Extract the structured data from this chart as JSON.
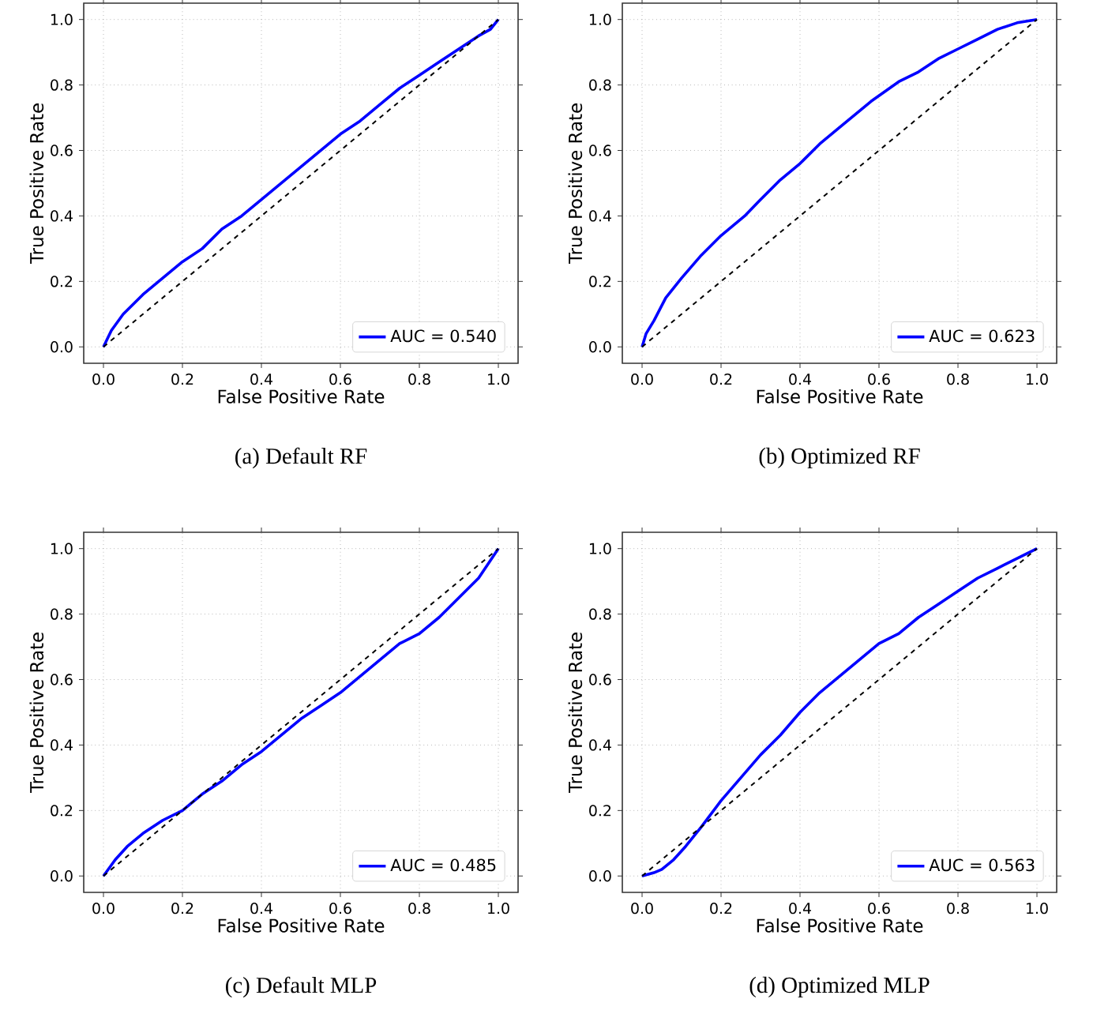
{
  "chart_data": [
    {
      "type": "line",
      "xlabel": "False Positive Rate",
      "ylabel": "True Positive Rate",
      "annotations": [
        "(a) Default RF"
      ],
      "xlim": [
        -0.05,
        1.05
      ],
      "ylim": [
        -0.05,
        1.05
      ],
      "xticks": [
        {
          "value": 0,
          "label": "0.0"
        },
        {
          "value": 0.2,
          "label": "0.2"
        },
        {
          "value": 0.4,
          "label": "0.4"
        },
        {
          "value": 0.6,
          "label": "0.6"
        },
        {
          "value": 0.8,
          "label": "0.8"
        },
        {
          "value": 1,
          "label": "1.0"
        }
      ],
      "yticks": [
        {
          "value": 0,
          "label": "0.0"
        },
        {
          "value": 0.2,
          "label": "0.2"
        },
        {
          "value": 0.4,
          "label": "0.4"
        },
        {
          "value": 0.6,
          "label": "0.6"
        },
        {
          "value": 0.8,
          "label": "0.8"
        },
        {
          "value": 1,
          "label": "1.0"
        }
      ],
      "grid": true,
      "legend": "bottom right",
      "series": [
        {
          "name": "AUC = 0.540",
          "color": "#0000ff",
          "line_style": "solid",
          "x": [
            0,
            0.02,
            0.05,
            0.1,
            0.15,
            0.2,
            0.25,
            0.3,
            0.35,
            0.4,
            0.45,
            0.5,
            0.55,
            0.6,
            0.65,
            0.7,
            0.75,
            0.8,
            0.85,
            0.9,
            0.95,
            0.98,
            1
          ],
          "values": [
            0,
            0.05,
            0.1,
            0.16,
            0.21,
            0.26,
            0.3,
            0.36,
            0.4,
            0.45,
            0.5,
            0.55,
            0.6,
            0.65,
            0.69,
            0.74,
            0.79,
            0.83,
            0.87,
            0.91,
            0.95,
            0.97,
            1
          ]
        },
        {
          "color": "#000000",
          "line_style": "dashed",
          "x": [
            0,
            1
          ],
          "values": [
            0,
            1
          ]
        }
      ]
    },
    {
      "type": "line",
      "xlabel": "False Positive Rate",
      "ylabel": "True Positive Rate",
      "annotations": [
        "(b) Optimized RF"
      ],
      "xlim": [
        -0.05,
        1.05
      ],
      "ylim": [
        -0.05,
        1.05
      ],
      "xticks": [
        {
          "value": 0,
          "label": "0.0"
        },
        {
          "value": 0.2,
          "label": "0.2"
        },
        {
          "value": 0.4,
          "label": "0.4"
        },
        {
          "value": 0.6,
          "label": "0.6"
        },
        {
          "value": 0.8,
          "label": "0.8"
        },
        {
          "value": 1,
          "label": "1.0"
        }
      ],
      "yticks": [
        {
          "value": 0,
          "label": "0.0"
        },
        {
          "value": 0.2,
          "label": "0.2"
        },
        {
          "value": 0.4,
          "label": "0.4"
        },
        {
          "value": 0.6,
          "label": "0.6"
        },
        {
          "value": 0.8,
          "label": "0.8"
        },
        {
          "value": 1,
          "label": "1.0"
        }
      ],
      "grid": true,
      "legend": "bottom right",
      "series": [
        {
          "name": "AUC = 0.623",
          "color": "#0000ff",
          "line_style": "solid",
          "x": [
            0,
            0.01,
            0.03,
            0.06,
            0.1,
            0.15,
            0.2,
            0.26,
            0.3,
            0.35,
            0.4,
            0.45,
            0.5,
            0.54,
            0.58,
            0.65,
            0.7,
            0.75,
            0.8,
            0.85,
            0.9,
            0.95,
            1
          ],
          "values": [
            0,
            0.04,
            0.08,
            0.15,
            0.21,
            0.28,
            0.34,
            0.4,
            0.45,
            0.51,
            0.56,
            0.62,
            0.67,
            0.71,
            0.75,
            0.81,
            0.84,
            0.88,
            0.91,
            0.94,
            0.97,
            0.99,
            1
          ]
        },
        {
          "color": "#000000",
          "line_style": "dashed",
          "x": [
            0,
            1
          ],
          "values": [
            0,
            1
          ]
        }
      ]
    },
    {
      "type": "line",
      "xlabel": "False Positive Rate",
      "ylabel": "True Positive Rate",
      "annotations": [
        "(c) Default MLP"
      ],
      "xlim": [
        -0.05,
        1.05
      ],
      "ylim": [
        -0.05,
        1.05
      ],
      "xticks": [
        {
          "value": 0,
          "label": "0.0"
        },
        {
          "value": 0.2,
          "label": "0.2"
        },
        {
          "value": 0.4,
          "label": "0.4"
        },
        {
          "value": 0.6,
          "label": "0.6"
        },
        {
          "value": 0.8,
          "label": "0.8"
        },
        {
          "value": 1,
          "label": "1.0"
        }
      ],
      "yticks": [
        {
          "value": 0,
          "label": "0.0"
        },
        {
          "value": 0.2,
          "label": "0.2"
        },
        {
          "value": 0.4,
          "label": "0.4"
        },
        {
          "value": 0.6,
          "label": "0.6"
        },
        {
          "value": 0.8,
          "label": "0.8"
        },
        {
          "value": 1,
          "label": "1.0"
        }
      ],
      "grid": true,
      "legend": "bottom right",
      "series": [
        {
          "name": "AUC = 0.485",
          "color": "#0000ff",
          "line_style": "solid",
          "x": [
            0,
            0.03,
            0.06,
            0.1,
            0.15,
            0.2,
            0.25,
            0.3,
            0.35,
            0.4,
            0.45,
            0.5,
            0.55,
            0.6,
            0.65,
            0.7,
            0.75,
            0.8,
            0.85,
            0.9,
            0.95,
            1
          ],
          "values": [
            0,
            0.05,
            0.09,
            0.13,
            0.17,
            0.2,
            0.25,
            0.29,
            0.34,
            0.38,
            0.43,
            0.48,
            0.52,
            0.56,
            0.61,
            0.66,
            0.71,
            0.74,
            0.79,
            0.85,
            0.91,
            1
          ]
        },
        {
          "color": "#000000",
          "line_style": "dashed",
          "x": [
            0,
            1
          ],
          "values": [
            0,
            1
          ]
        }
      ]
    },
    {
      "type": "line",
      "xlabel": "False Positive Rate",
      "ylabel": "True Positive Rate",
      "annotations": [
        "(d) Optimized MLP"
      ],
      "xlim": [
        -0.05,
        1.05
      ],
      "ylim": [
        -0.05,
        1.05
      ],
      "xticks": [
        {
          "value": 0,
          "label": "0.0"
        },
        {
          "value": 0.2,
          "label": "0.2"
        },
        {
          "value": 0.4,
          "label": "0.4"
        },
        {
          "value": 0.6,
          "label": "0.6"
        },
        {
          "value": 0.8,
          "label": "0.8"
        },
        {
          "value": 1,
          "label": "1.0"
        }
      ],
      "yticks": [
        {
          "value": 0,
          "label": "0.0"
        },
        {
          "value": 0.2,
          "label": "0.2"
        },
        {
          "value": 0.4,
          "label": "0.4"
        },
        {
          "value": 0.6,
          "label": "0.6"
        },
        {
          "value": 0.8,
          "label": "0.8"
        },
        {
          "value": 1,
          "label": "1.0"
        }
      ],
      "grid": true,
      "legend": "bottom right",
      "series": [
        {
          "name": "AUC = 0.563",
          "color": "#0000ff",
          "line_style": "solid",
          "x": [
            0,
            0.03,
            0.05,
            0.08,
            0.11,
            0.15,
            0.2,
            0.25,
            0.3,
            0.35,
            0.4,
            0.45,
            0.5,
            0.55,
            0.6,
            0.65,
            0.7,
            0.75,
            0.8,
            0.85,
            0.9,
            0.95,
            1
          ],
          "values": [
            0,
            0.01,
            0.02,
            0.05,
            0.09,
            0.15,
            0.23,
            0.3,
            0.37,
            0.43,
            0.5,
            0.56,
            0.61,
            0.66,
            0.71,
            0.74,
            0.79,
            0.83,
            0.87,
            0.91,
            0.94,
            0.97,
            1
          ]
        },
        {
          "color": "#000000",
          "line_style": "dashed",
          "x": [
            0,
            1
          ],
          "values": [
            0,
            1
          ]
        }
      ]
    }
  ]
}
